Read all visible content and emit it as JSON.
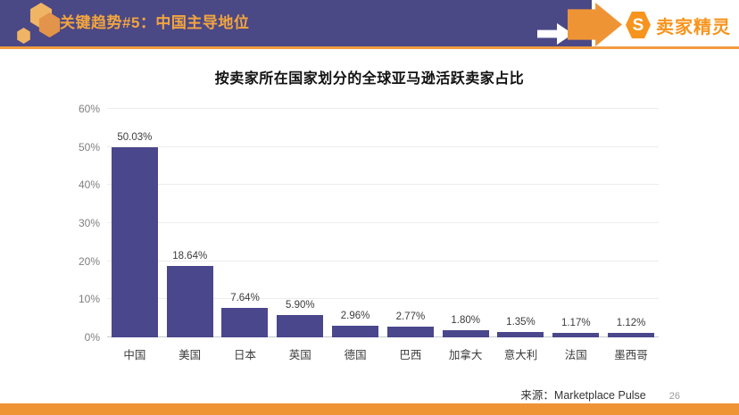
{
  "header": {
    "title": "关键趋势#5：中国主导地位",
    "logo_text": "卖家精灵",
    "logo_letter": "S"
  },
  "chart_data": {
    "type": "bar",
    "title": "按卖家所在国家划分的全球亚马逊活跃卖家占比",
    "categories": [
      "中国",
      "美国",
      "日本",
      "英国",
      "德国",
      "巴西",
      "加拿大",
      "意大利",
      "法国",
      "墨西哥"
    ],
    "values": [
      50.03,
      18.64,
      7.64,
      5.9,
      2.96,
      2.77,
      1.8,
      1.35,
      1.17,
      1.12
    ],
    "labels": [
      "50.03%",
      "18.64%",
      "7.64%",
      "5.90%",
      "2.96%",
      "2.77%",
      "1.80%",
      "1.35%",
      "1.17%",
      "1.12%"
    ],
    "xlabel": "",
    "ylabel": "",
    "ylim": [
      0,
      60
    ],
    "yticks": [
      "0%",
      "10%",
      "20%",
      "30%",
      "40%",
      "50%",
      "60%"
    ],
    "grid": true,
    "legend": "none",
    "bar_color": "#4A478C"
  },
  "footer": {
    "source": "来源：Marketplace Pulse",
    "page_number": "26"
  },
  "colors": {
    "header_background": "#4B4886",
    "accent_orange": "#EF9435",
    "header_title_orange": "#F2A53E",
    "brand_orange": "#F7941E",
    "bar_purple": "#4A478C",
    "gridline": "#EDEDED",
    "tick_gray": "#7F7F7F"
  }
}
